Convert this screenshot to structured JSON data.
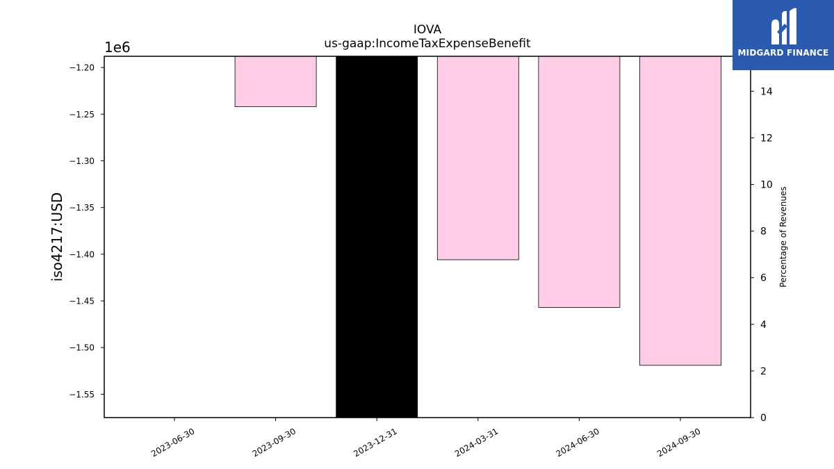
{
  "chart_data": {
    "type": "bar",
    "title": "IOVA",
    "subtitle": "us-gaap:IncomeTaxExpenseBenefit",
    "ylabel": "iso4217:USD",
    "y_offset_label": "1e6",
    "y2label": "Percentage of Revenues",
    "categories": [
      "2023-06-30",
      "2023-09-30",
      "2023-12-31",
      "2024-03-31",
      "2024-06-30",
      "2024-09-30"
    ],
    "values": [
      null,
      -1242000,
      -1575000,
      -1406000,
      -1457000,
      -1519000
    ],
    "bar_colors": [
      null,
      "#ffccE6",
      "#000000",
      "#ffccE6",
      "#ffccE6",
      "#ffccE6"
    ],
    "ylim": [
      -1575000,
      -1188000
    ],
    "yticks": [
      -1200000,
      -1250000,
      -1300000,
      -1350000,
      -1400000,
      -1450000,
      -1500000,
      -1550000
    ],
    "ytick_labels": [
      "−1.20",
      "−1.25",
      "−1.30",
      "−1.35",
      "−1.40",
      "−1.45",
      "−1.50",
      "−1.55"
    ],
    "y2lim": [
      0,
      15.5
    ],
    "y2ticks": [
      0,
      2,
      4,
      6,
      8,
      10,
      12,
      14
    ],
    "grid": false
  },
  "logo": {
    "text": "MIDGARD FINANCE",
    "icon": "midgard-m-icon",
    "color": "#2b5bb0"
  }
}
